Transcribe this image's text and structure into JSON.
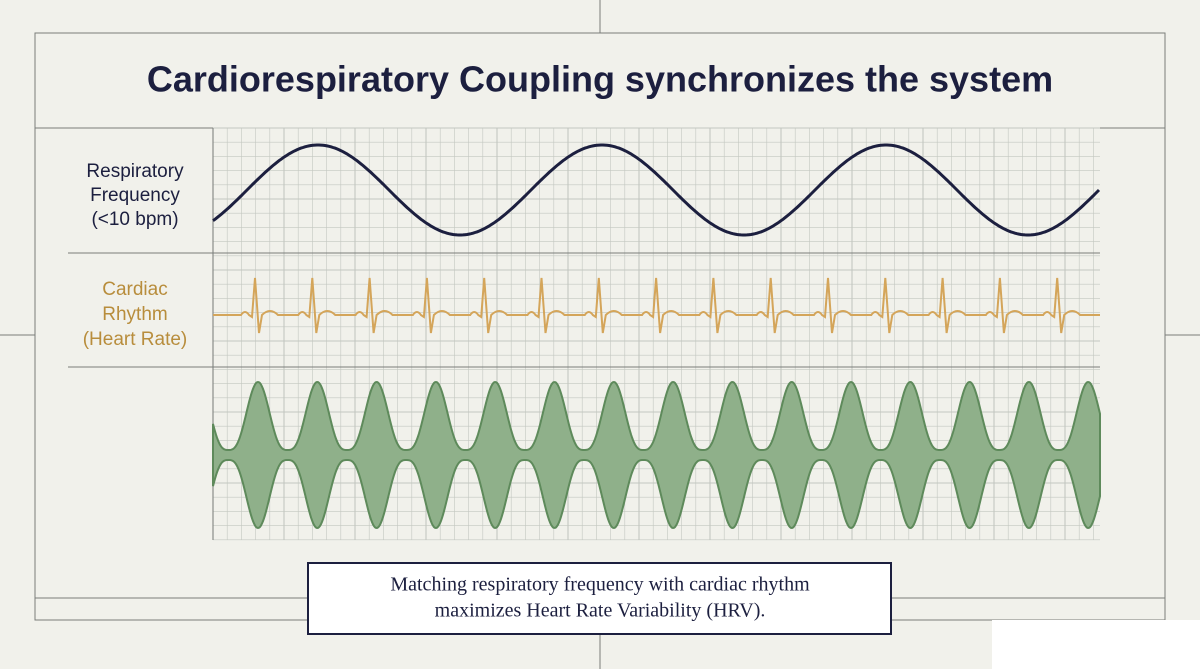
{
  "title": "Cardiorespiratory Coupling synchronizes the system",
  "rows": [
    {
      "label": [
        "Respiratory",
        "Frequency",
        "(<10 bpm)"
      ]
    },
    {
      "label": [
        "Cardiac",
        "Rhythm",
        "(Heart Rate)"
      ]
    }
  ],
  "caption": [
    "Matching respiratory frequency with cardiac rhythm",
    "maximizes Heart Rate Variability (HRV)."
  ]
}
